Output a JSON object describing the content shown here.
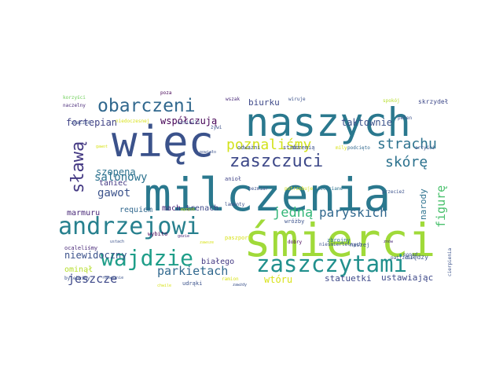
{
  "words": [
    {
      "text": "milczenia",
      "color": "#2a788e"
    },
    {
      "text": "śmierci",
      "color": "#a0da39"
    },
    {
      "text": "naszych",
      "color": "#2a788e"
    },
    {
      "text": "więc",
      "color": "#3b528b"
    },
    {
      "text": "andrzejowi",
      "color": "#27808e"
    },
    {
      "text": "wajdzie",
      "color": "#1f9e89"
    },
    {
      "text": "zaszczytami",
      "color": "#21908d"
    },
    {
      "text": "obarczeni",
      "color": "#31688e"
    },
    {
      "text": "zaszczuci",
      "color": "#3e4989"
    },
    {
      "text": "sławą",
      "color": "#443983"
    },
    {
      "text": "strachu",
      "color": "#2c728e"
    },
    {
      "text": "poznaliśmy",
      "color": "#d2e21b"
    },
    {
      "text": "skórę",
      "color": "#2c728e"
    },
    {
      "text": "paryskich",
      "color": "#31688e"
    },
    {
      "text": "jedną",
      "color": "#35b779"
    },
    {
      "text": "figurę",
      "color": "#4ac16d"
    },
    {
      "text": "jeszcze",
      "color": "#3e4989"
    },
    {
      "text": "parkietach",
      "color": "#31688e"
    },
    {
      "text": "gawot",
      "color": "#3b528b"
    },
    {
      "text": "salonowy",
      "color": "#2c728e"
    },
    {
      "text": "współczują",
      "color": "#440154"
    },
    {
      "text": "taktownie",
      "color": "#3b528b"
    },
    {
      "text": "szopena",
      "color": "#2c728e"
    },
    {
      "text": "niewidoczny",
      "color": "#3b528b"
    },
    {
      "text": "fortepian",
      "color": "#414487"
    },
    {
      "text": "ustawiając",
      "color": "#3e4989"
    },
    {
      "text": "statuetki",
      "color": "#3e4989"
    },
    {
      "text": "wtóru",
      "color": "#d8e219"
    },
    {
      "text": "biurku",
      "color": "#3e4989"
    },
    {
      "text": "narody",
      "color": "#2c728e"
    },
    {
      "text": "marmuru",
      "color": "#482878"
    },
    {
      "text": "białego",
      "color": "#443983"
    },
    {
      "text": "trenach",
      "color": "#3e4989"
    },
    {
      "text": "requiem",
      "color": "#31688e"
    },
    {
      "text": "mach",
      "color": "#482878"
    },
    {
      "text": "taniec",
      "color": "#443983"
    },
    {
      "text": "ominął",
      "color": "#b5de2b"
    },
    {
      "text": "skrzydeł",
      "color": "#3e4989"
    },
    {
      "text": "naczelny",
      "color": "#482878"
    },
    {
      "text": "korzyści",
      "color": "#6ece58"
    },
    {
      "text": "pełen",
      "color": "#3b528b"
    },
    {
      "text": "spokój",
      "color": "#b5de2b"
    },
    {
      "text": "wiruje",
      "color": "#3b528b"
    },
    {
      "text": "wszak",
      "color": "#482878"
    },
    {
      "text": "poza",
      "color": "#440154"
    },
    {
      "text": "znaczeń",
      "color": "#3b528b"
    },
    {
      "text": "mily",
      "color": "#d8e219"
    },
    {
      "text": "podcięto",
      "color": "#31688e"
    },
    {
      "text": "artyści",
      "color": "#3b528b"
    },
    {
      "text": "odważni",
      "color": "#3b528b"
    },
    {
      "text": "stróż",
      "color": "#3e4989"
    },
    {
      "text": "drzemią",
      "color": "#3b528b"
    },
    {
      "text": "anioł",
      "color": "#414487"
    },
    {
      "text": "bezmiar",
      "color": "#3b528b"
    },
    {
      "text": "niechciane",
      "color": "#2c728e"
    },
    {
      "text": "potrzebuje",
      "color": "#d8e219"
    },
    {
      "text": "przecież",
      "color": "#3b528b"
    },
    {
      "text": "zbrojny",
      "color": "#2c728e"
    },
    {
      "text": "między",
      "color": "#3b528b"
    },
    {
      "text": "ponad",
      "color": "#3b528b"
    },
    {
      "text": "nieśmiertelnych",
      "color": "#3b528b"
    },
    {
      "text": "dobry",
      "color": "#440154"
    },
    {
      "text": "wróżby",
      "color": "#3b528b"
    },
    {
      "text": "wybito",
      "color": "#440154"
    },
    {
      "text": "ocaleliśmy",
      "color": "#482878"
    },
    {
      "text": "ustach",
      "color": "#3b528b"
    },
    {
      "text": "bylebyśmy",
      "color": "#3b528b"
    },
    {
      "text": "udrąki",
      "color": "#3b528b"
    },
    {
      "text": "paszport",
      "color": "#d8e219"
    },
    {
      "text": "naszej",
      "color": "#3b528b"
    },
    {
      "text": "patrzcie",
      "color": "#3b528b"
    },
    {
      "text": "cierpienia",
      "color": "#3b528b"
    },
    {
      "text": "znów",
      "color": "#482878"
    },
    {
      "text": "żywi",
      "color": "#3b528b"
    },
    {
      "text": "wznieśli",
      "color": "#3b528b"
    },
    {
      "text": "niedoczesnej",
      "color": "#d8e219"
    },
    {
      "text": "ramion",
      "color": "#d8e219"
    },
    {
      "text": "rozważnie",
      "color": "#3b528b"
    },
    {
      "text": "chwile",
      "color": "#d8e219"
    },
    {
      "text": "gawot",
      "color": "#d8e219"
    },
    {
      "text": "gdzie",
      "color": "#482878"
    },
    {
      "text": "lamenty",
      "color": "#3b528b"
    },
    {
      "text": "zawsze",
      "color": "#d8e219"
    },
    {
      "text": "zawżdy",
      "color": "#3b528b"
    },
    {
      "text": "powiało",
      "color": "#3b528b"
    },
    {
      "text": "wyzysk",
      "color": "#d8e219"
    }
  ]
}
